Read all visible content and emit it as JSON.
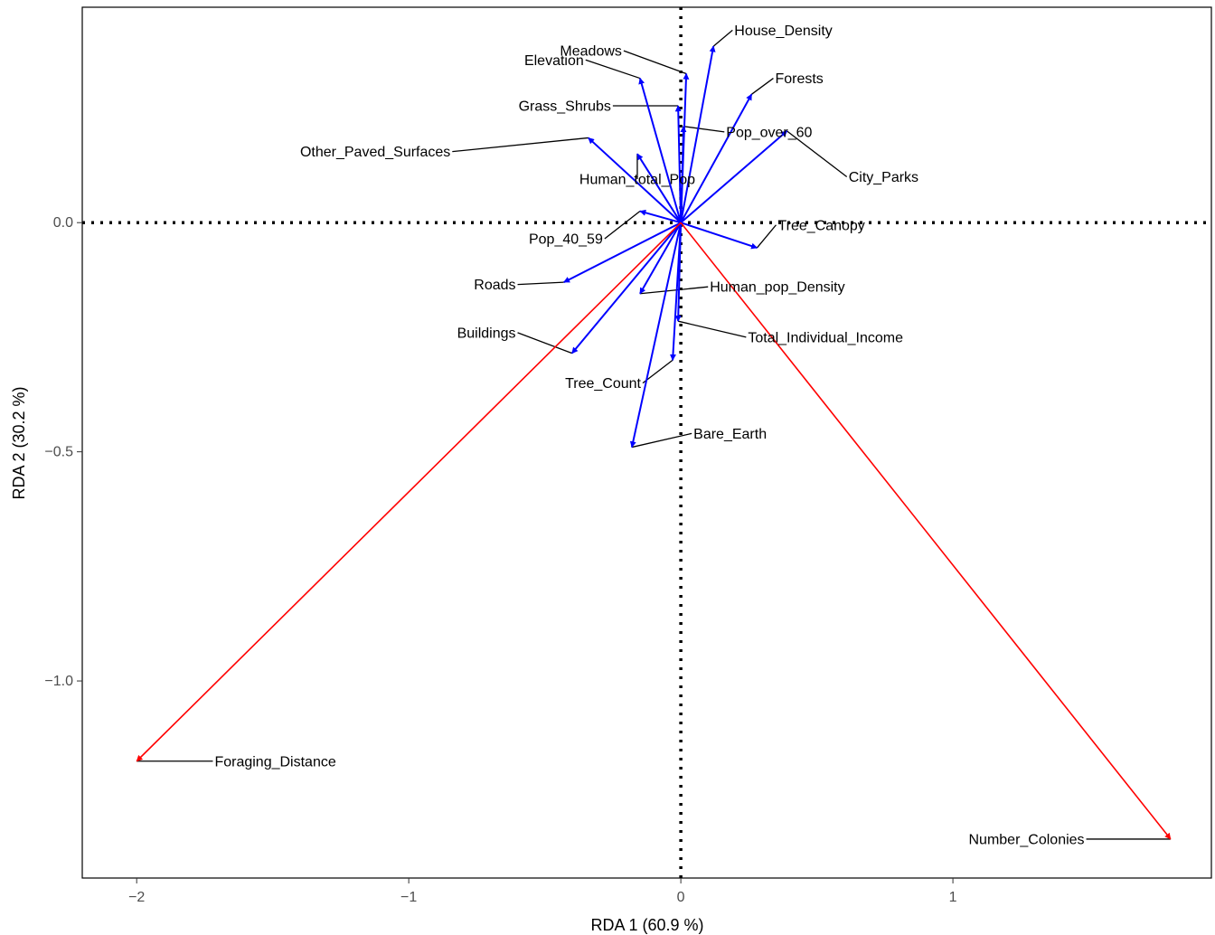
{
  "chart_data": {
    "type": "scatter",
    "subtype": "rda-biplot",
    "title": "",
    "xlabel": "RDA 1 (60.9 %)",
    "ylabel": "RDA 2 (30.2 %)",
    "xlim": [
      -2.2,
      1.95
    ],
    "ylim": [
      -1.43,
      0.47
    ],
    "x_ticks": [
      -2,
      -1,
      0,
      1
    ],
    "x_tick_labels": [
      "−2",
      "−1",
      "0",
      "1"
    ],
    "y_ticks": [
      0.0,
      -0.5,
      -1.0
    ],
    "y_tick_labels": [
      "0.0",
      "−0.5",
      "−1.0"
    ],
    "grid": false,
    "reference_lines": {
      "x": 0,
      "y": 0,
      "style": "dotted"
    },
    "colors": {
      "explanatory": "#0000ff",
      "response": "#ff0000",
      "leader": "#000000",
      "axis": "#000000"
    },
    "explanatory_vectors": [
      {
        "name": "House_Density",
        "x": 0.12,
        "y": 0.385,
        "label_x": 0.19,
        "label_y": 0.42
      },
      {
        "name": "Meadows",
        "x": 0.02,
        "y": 0.325,
        "label_x": -0.21,
        "label_y": 0.375
      },
      {
        "name": "Elevation",
        "x": -0.15,
        "y": 0.315,
        "label_x": -0.35,
        "label_y": 0.355
      },
      {
        "name": "Forests",
        "x": 0.26,
        "y": 0.28,
        "label_x": 0.34,
        "label_y": 0.315
      },
      {
        "name": "Grass_Shrubs",
        "x": -0.01,
        "y": 0.255,
        "label_x": -0.25,
        "label_y": 0.255
      },
      {
        "name": "Pop_over_60",
        "x": 0.01,
        "y": 0.21,
        "label_x": 0.16,
        "label_y": 0.198
      },
      {
        "name": "City_Parks",
        "x": 0.39,
        "y": 0.2,
        "label_x": 0.61,
        "label_y": 0.1
      },
      {
        "name": "Other_Paved_Surfaces",
        "x": -0.34,
        "y": 0.185,
        "label_x": -0.84,
        "label_y": 0.155
      },
      {
        "name": "Human_total_Pop",
        "x": -0.16,
        "y": 0.15,
        "label_x": -0.16,
        "label_y": 0.095
      },
      {
        "name": "Pop_40_59",
        "x": -0.15,
        "y": 0.025,
        "label_x": -0.28,
        "label_y": -0.035
      },
      {
        "name": "Tree_Canopy",
        "x": 0.28,
        "y": -0.055,
        "label_x": 0.35,
        "label_y": -0.005
      },
      {
        "name": "Roads",
        "x": -0.43,
        "y": -0.13,
        "label_x": -0.6,
        "label_y": -0.135
      },
      {
        "name": "Human_pop_Density",
        "x": -0.15,
        "y": -0.155,
        "label_x": 0.1,
        "label_y": -0.14
      },
      {
        "name": "Total_Individual_Income",
        "x": -0.01,
        "y": -0.215,
        "label_x": 0.24,
        "label_y": -0.25
      },
      {
        "name": "Buildings",
        "x": -0.4,
        "y": -0.285,
        "label_x": -0.6,
        "label_y": -0.24
      },
      {
        "name": "Tree_Count",
        "x": -0.03,
        "y": -0.3,
        "label_x": -0.14,
        "label_y": -0.35
      },
      {
        "name": "Bare_Earth",
        "x": -0.18,
        "y": -0.49,
        "label_x": 0.04,
        "label_y": -0.46
      }
    ],
    "response_vectors": [
      {
        "name": "Foraging_Distance",
        "x": -2.0,
        "y": -1.175,
        "label_x": -1.72,
        "label_y": -1.175
      },
      {
        "name": "Number_Colonies",
        "x": 1.8,
        "y": -1.345,
        "label_x": 1.49,
        "label_y": -1.345
      }
    ]
  }
}
